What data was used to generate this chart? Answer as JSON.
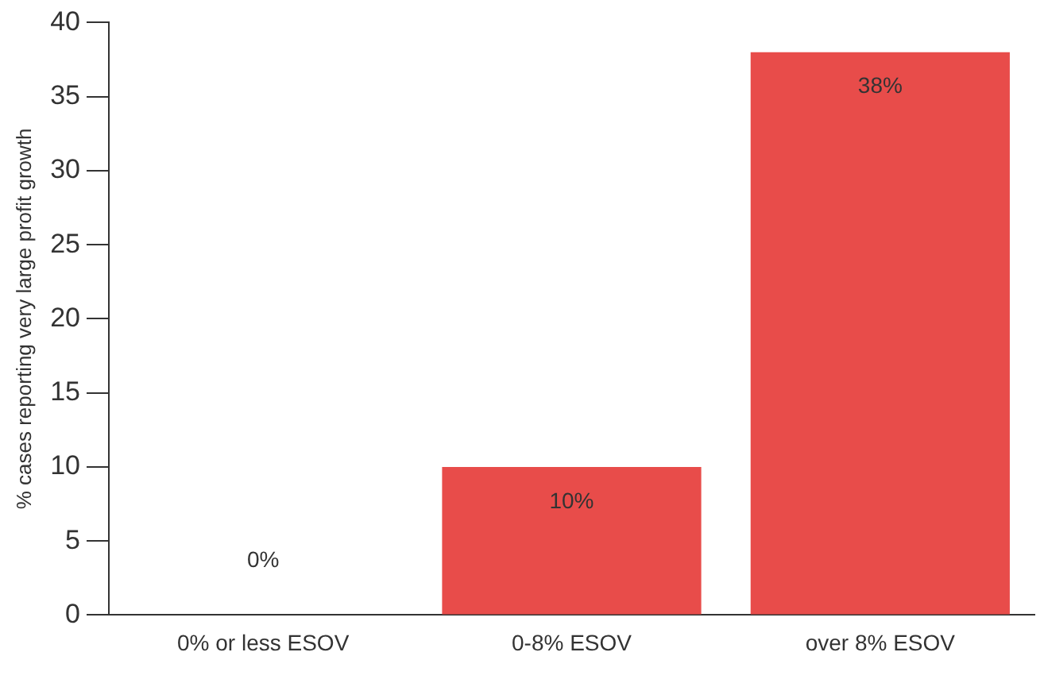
{
  "chart_data": {
    "type": "bar",
    "ylabel": "% cases reporting very large profit growth",
    "categories": [
      "0% or less ESOV",
      "0-8% ESOV",
      "over 8% ESOV"
    ],
    "values": [
      0,
      10,
      38
    ],
    "value_labels": [
      "0%",
      "10%",
      "38%"
    ],
    "color": "#e84c4a",
    "ylim": [
      0,
      40
    ],
    "yticks": [
      0,
      5,
      10,
      15,
      20,
      25,
      30,
      35,
      40
    ],
    "grid": false,
    "legend": false
  }
}
